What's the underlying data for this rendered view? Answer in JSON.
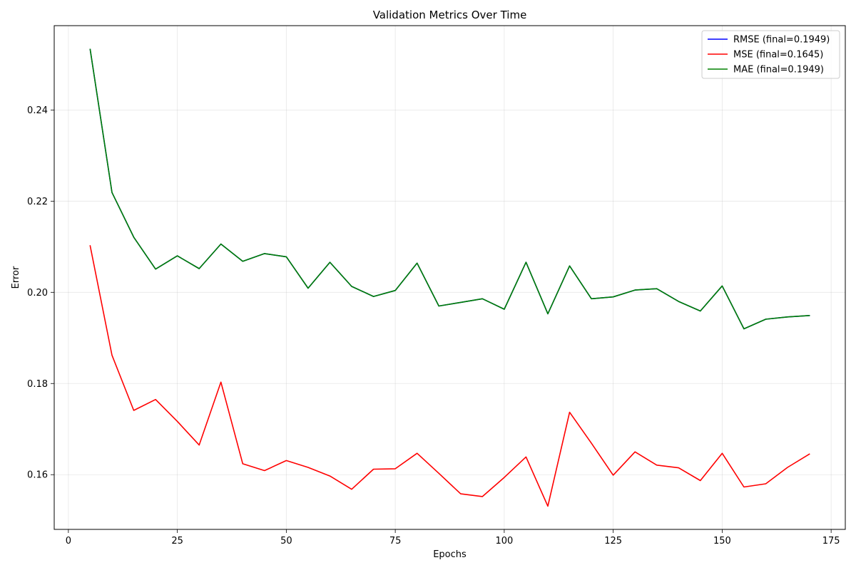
{
  "chart_data": {
    "type": "line",
    "title": "Validation Metrics Over Time",
    "xlabel": "Epochs",
    "ylabel": "Error",
    "xlim": [
      -3.25,
      178.25
    ],
    "ylim": [
      0.148,
      0.2585
    ],
    "x_ticks": [
      0,
      25,
      50,
      75,
      100,
      125,
      150,
      175
    ],
    "x_tick_labels": [
      "0",
      "25",
      "50",
      "75",
      "100",
      "125",
      "150",
      "175"
    ],
    "y_ticks": [
      0.16,
      0.18,
      0.2,
      0.22,
      0.24
    ],
    "y_tick_labels": [
      "0.16",
      "0.18",
      "0.20",
      "0.22",
      "0.24"
    ],
    "grid": true,
    "legend_position": "top-right",
    "x": [
      5,
      10,
      15,
      20,
      25,
      30,
      35,
      40,
      45,
      50,
      55,
      60,
      65,
      70,
      75,
      80,
      85,
      90,
      95,
      100,
      105,
      110,
      115,
      120,
      125,
      130,
      135,
      140,
      145,
      150,
      155,
      160,
      165,
      170
    ],
    "series": [
      {
        "name": "RMSE (final=0.1949)",
        "color": "#0000ff",
        "values": [
          0.2533,
          0.2219,
          0.2121,
          0.2051,
          0.208,
          0.2052,
          0.2106,
          0.2068,
          0.2085,
          0.2078,
          0.2009,
          0.2066,
          0.2013,
          0.1991,
          0.2004,
          0.2064,
          0.197,
          0.1978,
          0.1986,
          0.1963,
          0.2066,
          0.1953,
          0.2058,
          0.1986,
          0.199,
          0.2005,
          0.2008,
          0.198,
          0.1959,
          0.2014,
          0.192,
          0.1941,
          0.1946,
          0.1949
        ]
      },
      {
        "name": "MSE (final=0.1645)",
        "color": "#ff0000",
        "values": [
          0.2102,
          0.1862,
          0.1741,
          0.1765,
          0.1717,
          0.1665,
          0.1803,
          0.1624,
          0.1609,
          0.1631,
          0.1616,
          0.1597,
          0.1568,
          0.1612,
          0.1613,
          0.1647,
          0.1603,
          0.1558,
          0.1552,
          0.1594,
          0.1639,
          0.1531,
          0.1737,
          0.1669,
          0.1599,
          0.165,
          0.1621,
          0.1615,
          0.1587,
          0.1647,
          0.1573,
          0.158,
          0.1616,
          0.1645
        ]
      },
      {
        "name": "MAE (final=0.1949)",
        "color": "#008000",
        "values": [
          0.2533,
          0.2219,
          0.2121,
          0.2051,
          0.208,
          0.2052,
          0.2106,
          0.2068,
          0.2085,
          0.2078,
          0.2009,
          0.2066,
          0.2013,
          0.1991,
          0.2004,
          0.2064,
          0.197,
          0.1978,
          0.1986,
          0.1963,
          0.2066,
          0.1953,
          0.2058,
          0.1986,
          0.199,
          0.2005,
          0.2008,
          0.198,
          0.1959,
          0.2014,
          0.192,
          0.1941,
          0.1946,
          0.1949
        ]
      }
    ]
  }
}
